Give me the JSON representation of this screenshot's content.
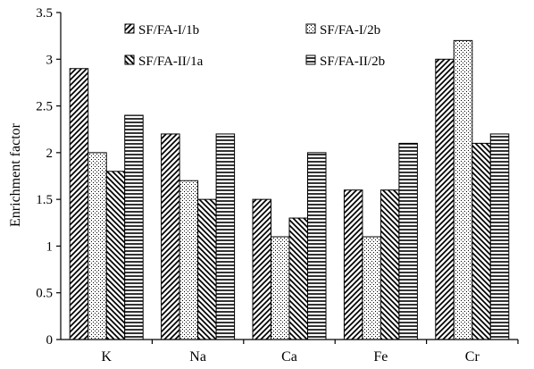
{
  "chart_data": {
    "type": "bar",
    "title": "",
    "xlabel": "",
    "ylabel": "Enrichment factor",
    "ylim": [
      0,
      3.5
    ],
    "yticks": [
      "0",
      "0.5",
      "1",
      "1.5",
      "2",
      "2.5",
      "3",
      "3.5"
    ],
    "grid": false,
    "legend_position": "top, two columns",
    "categories": [
      "K",
      "Na",
      "Ca",
      "Fe",
      "Cr"
    ],
    "series": [
      {
        "name": "SF/FA-I/1b",
        "pattern": "diagonal-forward",
        "values": [
          2.9,
          2.2,
          1.5,
          1.6,
          3.0
        ]
      },
      {
        "name": "SF/FA-I/2b",
        "pattern": "dots",
        "values": [
          2.0,
          1.7,
          1.1,
          1.1,
          3.2
        ]
      },
      {
        "name": "SF/FA-II/1a",
        "pattern": "diagonal-back",
        "values": [
          1.8,
          1.5,
          1.3,
          1.6,
          2.1
        ]
      },
      {
        "name": "SF/FA-II/2b",
        "pattern": "horizontal",
        "values": [
          2.4,
          2.2,
          2.0,
          2.1,
          2.2
        ]
      }
    ]
  }
}
